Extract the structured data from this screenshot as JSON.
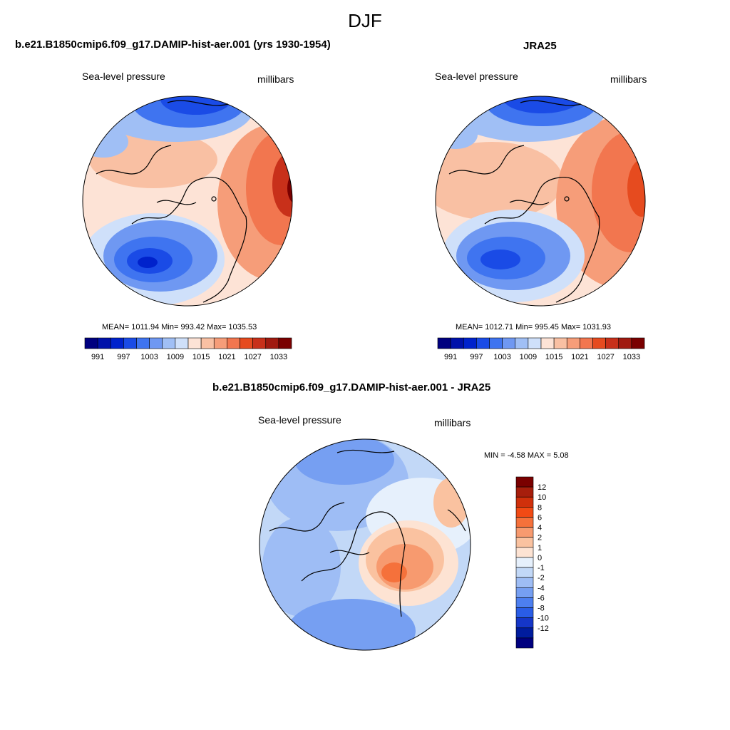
{
  "main_title": "DJF",
  "panels": [
    {
      "title": "b.e21.B1850cmip6.f09_g17.DAMIP-hist-aer.001 (yrs 1930-1954)",
      "left_label": "Sea-level pressure",
      "right_label": "millibars",
      "stats": "MEAN= 1011.94  Min= 993.42  Max= 1035.53"
    },
    {
      "title": "JRA25",
      "left_label": "Sea-level pressure",
      "right_label": "millibars",
      "stats": "MEAN= 1012.71  Min= 995.45  Max= 1031.93"
    },
    {
      "title": "b.e21.B1850cmip6.f09_g17.DAMIP-hist-aer.001 - JRA25",
      "left_label": "Sea-level pressure",
      "right_label": "millibars",
      "stats": "MIN =  -4.58 MAX =   5.08"
    }
  ],
  "abs_colorbar": {
    "colors": [
      "#00007f",
      "#0011aa",
      "#0022cc",
      "#1a4be6",
      "#3f74f0",
      "#6f98f2",
      "#a0bff5",
      "#cfe0fa",
      "#fde3d6",
      "#f9c0a3",
      "#f69d79",
      "#f2764f",
      "#e64b1f",
      "#c8301a",
      "#a01a10",
      "#7a0000"
    ],
    "ticks": [
      "991",
      "997",
      "1003",
      "1009",
      "1015",
      "1021",
      "1027",
      "1033"
    ]
  },
  "diff_colorbar": {
    "colors": [
      "#7a0000",
      "#a71e0c",
      "#d0300b",
      "#f14a14",
      "#f5713b",
      "#f79a6f",
      "#fac2a0",
      "#fde3d3",
      "#e6f0fc",
      "#c2d8f7",
      "#9ebdf5",
      "#769ff2",
      "#4d7ff0",
      "#2a5de6",
      "#1536c8",
      "#001c9e",
      "#00007f"
    ],
    "ticks": [
      "12",
      "10",
      "8",
      "6",
      "4",
      "2",
      "1",
      "0",
      "-1",
      "-2",
      "-4",
      "-6",
      "-8",
      "-10",
      "-12"
    ]
  }
}
